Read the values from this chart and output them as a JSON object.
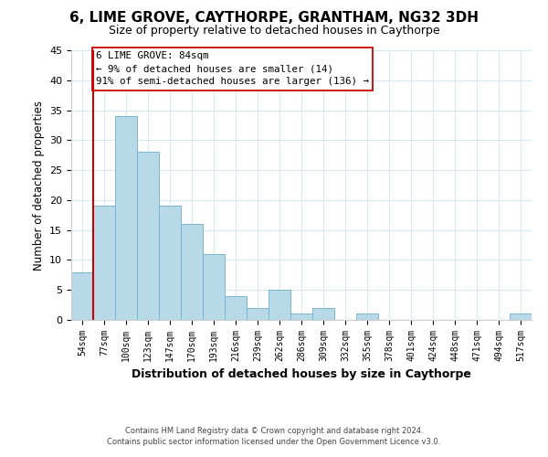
{
  "title": "6, LIME GROVE, CAYTHORPE, GRANTHAM, NG32 3DH",
  "subtitle": "Size of property relative to detached houses in Caythorpe",
  "xlabel": "Distribution of detached houses by size in Caythorpe",
  "ylabel": "Number of detached properties",
  "bar_color": "#b8d9e8",
  "bar_edge_color": "#7ab5ce",
  "bin_labels": [
    "54sqm",
    "77sqm",
    "100sqm",
    "123sqm",
    "147sqm",
    "170sqm",
    "193sqm",
    "216sqm",
    "239sqm",
    "262sqm",
    "286sqm",
    "309sqm",
    "332sqm",
    "355sqm",
    "378sqm",
    "401sqm",
    "424sqm",
    "448sqm",
    "471sqm",
    "494sqm",
    "517sqm"
  ],
  "bar_heights": [
    8,
    19,
    34,
    28,
    19,
    16,
    11,
    4,
    2,
    5,
    1,
    2,
    0,
    1,
    0,
    0,
    0,
    0,
    0,
    0,
    1
  ],
  "ylim": [
    0,
    45
  ],
  "yticks": [
    0,
    5,
    10,
    15,
    20,
    25,
    30,
    35,
    40,
    45
  ],
  "vline_x": 1,
  "vline_color": "#cc0000",
  "annotation_title": "6 LIME GROVE: 84sqm",
  "annotation_line1": "← 9% of detached houses are smaller (14)",
  "annotation_line2": "91% of semi-detached houses are larger (136) →",
  "annotation_box_color": "#ffffff",
  "annotation_box_edge": "#cc0000",
  "footer1": "Contains HM Land Registry data © Crown copyright and database right 2024.",
  "footer2": "Contains public sector information licensed under the Open Government Licence v3.0.",
  "background_color": "#ffffff",
  "grid_color": "#d8e8f0"
}
